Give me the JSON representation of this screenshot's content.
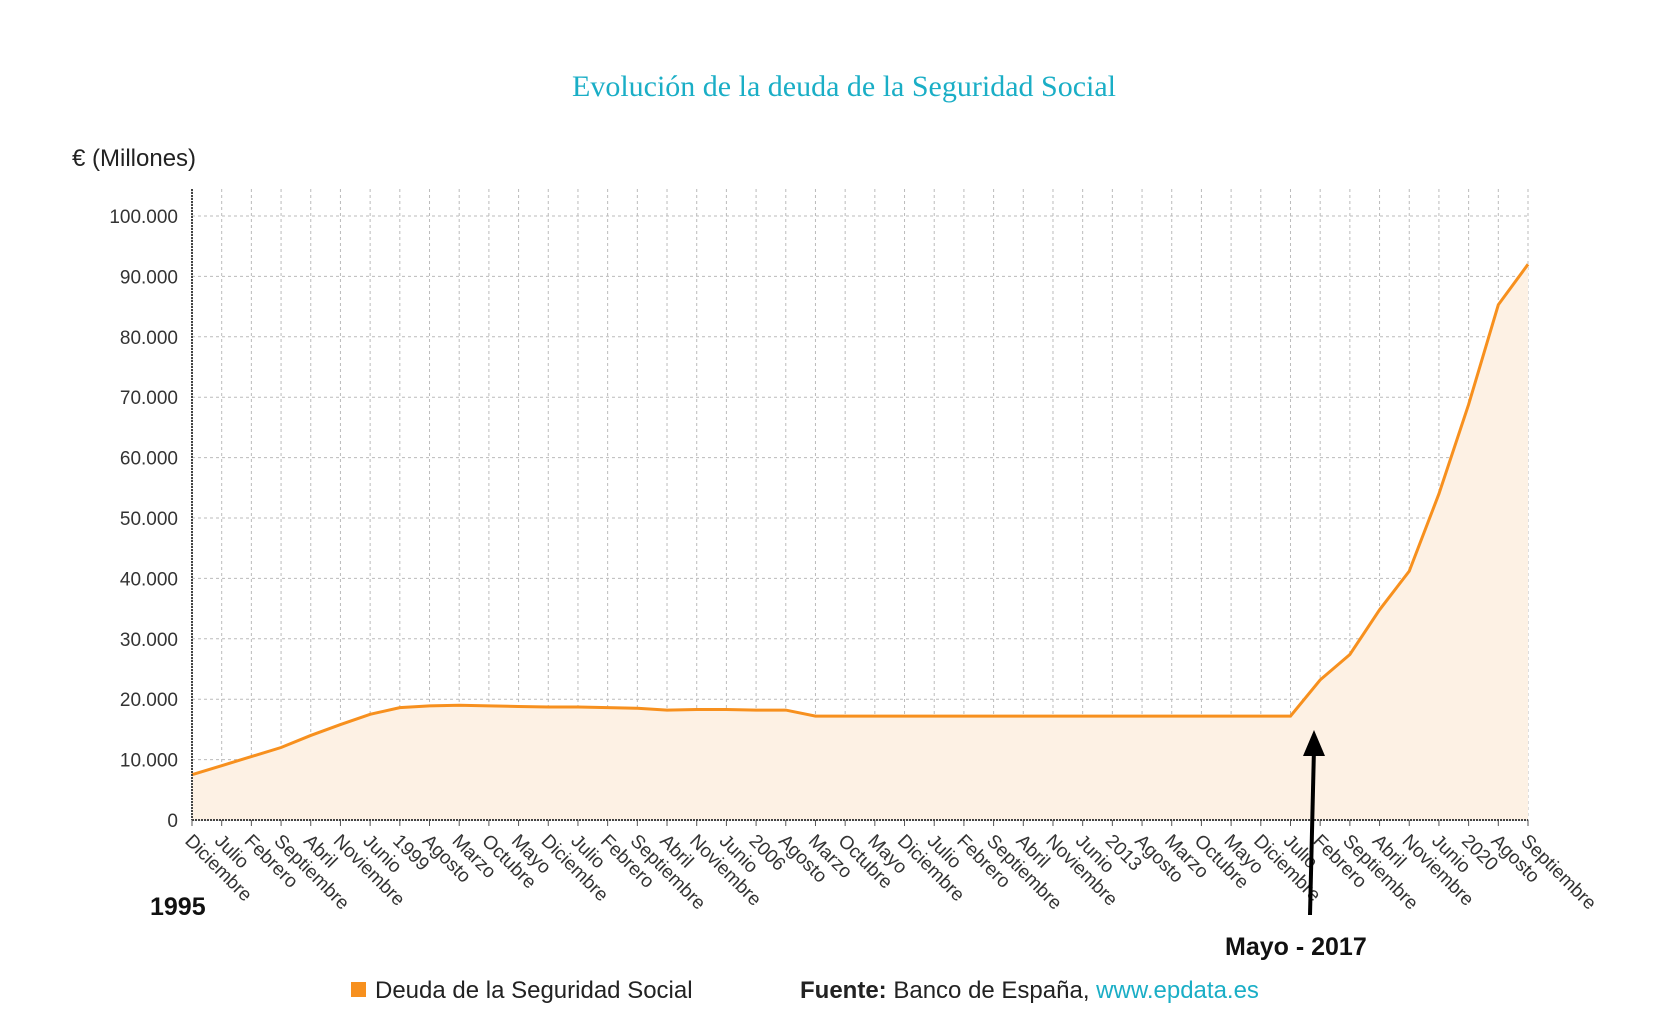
{
  "chart_data": {
    "type": "area",
    "title": "Evolución de la deuda de la Seguridad Social",
    "y_label": "€ (Millones)",
    "categories": [
      "Diciembre",
      "Julio",
      "Febrero",
      "Septiembre",
      "Abril",
      "Noviembre",
      "Junio",
      "1999",
      "Agosto",
      "Marzo",
      "Octubre",
      "Mayo",
      "Diciembre",
      "Julio",
      "Febrero",
      "Septiembre",
      "Abril",
      "Noviembre",
      "Junio",
      "2006",
      "Agosto",
      "Marzo",
      "Octubre",
      "Mayo",
      "Diciembre",
      "Julio",
      "Febrero",
      "Septiembre",
      "Abril",
      "Noviembre",
      "Junio",
      "2013",
      "Agosto",
      "Marzo",
      "Octubre",
      "Mayo",
      "Diciembre",
      "Julio",
      "Febrero",
      "Septiembre",
      "Abril",
      "Noviembre",
      "Junio",
      "2020",
      "Agosto",
      "Septiembre"
    ],
    "series": [
      {
        "name": "Deuda de la Seguridad Social",
        "color": "#f7901e",
        "fill": "#fdf1e4",
        "values": [
          7500,
          9000,
          10500,
          12000,
          14000,
          15800,
          17500,
          18600,
          18900,
          19000,
          18900,
          18800,
          18700,
          18700,
          18600,
          18500,
          18200,
          18300,
          18300,
          18200,
          18200,
          17200,
          17200,
          17200,
          17200,
          17200,
          17200,
          17200,
          17200,
          17200,
          17200,
          17200,
          17200,
          17200,
          17200,
          17200,
          17200,
          17200,
          23200,
          27400,
          34800,
          41200,
          54000,
          68800,
          85300,
          92000
        ]
      }
    ],
    "ylim": [
      0,
      100000
    ],
    "yticks": [
      0,
      {
        "value": 10000,
        "label": "10.000"
      },
      {
        "value": 20000,
        "label": "20.000"
      },
      {
        "value": 30000,
        "label": "30.000"
      },
      {
        "value": 40000,
        "label": "40.000"
      },
      {
        "value": 50000,
        "label": "50.000"
      },
      {
        "value": 60000,
        "label": "60.000"
      },
      {
        "value": 70000,
        "label": "70.000"
      },
      {
        "value": 80000,
        "label": "80.000"
      },
      {
        "value": 90000,
        "label": "90.000"
      },
      {
        "value": 100000,
        "label": "100.000"
      }
    ],
    "grid": true,
    "annotations": [
      "1995",
      "Mayo - 2017"
    ],
    "source": {
      "label": "Fuente:",
      "text": "Banco de España,",
      "url": "www.epdata.es"
    }
  }
}
